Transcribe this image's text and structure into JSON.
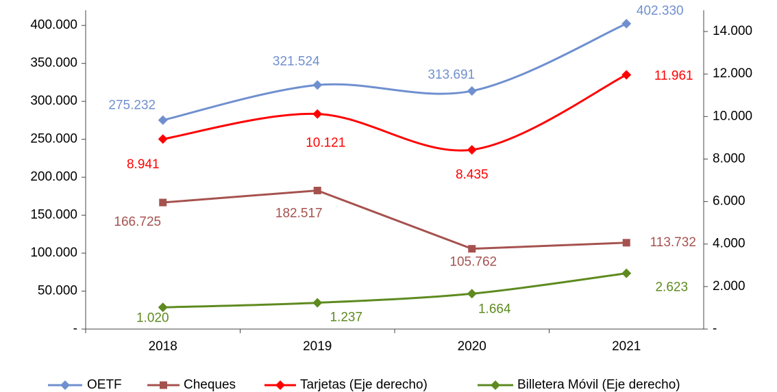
{
  "chart_data": {
    "type": "line",
    "categories": [
      "2018",
      "2019",
      "2020",
      "2021"
    ],
    "ylim": [
      0,
      420000
    ],
    "yticks": [
      {
        "value": 0,
        "label": "-"
      },
      {
        "value": 50000,
        "label": "50.000"
      },
      {
        "value": 100000,
        "label": "100.000"
      },
      {
        "value": 150000,
        "label": "150.000"
      },
      {
        "value": 200000,
        "label": "200.000"
      },
      {
        "value": 250000,
        "label": "250.000"
      },
      {
        "value": 300000,
        "label": "300.000"
      },
      {
        "value": 350000,
        "label": "350.000"
      },
      {
        "value": 400000,
        "label": "400.000"
      }
    ],
    "y2lim": [
      0,
      15000
    ],
    "y2ticks": [
      {
        "value": 0,
        "label": "-"
      },
      {
        "value": 2000,
        "label": "2.000"
      },
      {
        "value": 4000,
        "label": "4.000"
      },
      {
        "value": 6000,
        "label": "6.000"
      },
      {
        "value": 8000,
        "label": "8.000"
      },
      {
        "value": 10000,
        "label": "10.000"
      },
      {
        "value": 12000,
        "label": "12.000"
      },
      {
        "value": 14000,
        "label": "14.000"
      }
    ],
    "legend": "bottom",
    "series": [
      {
        "name": "OETF",
        "color": "#6f8fcf",
        "marker": "diamond",
        "smooth": true,
        "values": [
          275232,
          321524,
          313691,
          402330
        ],
        "value_labels": [
          "275.232",
          "321.524",
          "313.691",
          "402.330"
        ]
      },
      {
        "name": "Cheques",
        "color": "#a5524f",
        "marker": "square",
        "smooth": false,
        "values": [
          166725,
          182517,
          105762,
          113732
        ],
        "value_labels": [
          "166.725",
          "182.517",
          "105.762",
          "113.732"
        ]
      },
      {
        "name": "Tarjetas (Eje derecho)",
        "color": "#ff0000",
        "marker": "diamond",
        "smooth": true,
        "axis": "y2",
        "values": [
          8941,
          10121,
          8435,
          11961
        ],
        "value_labels": [
          "8.941",
          "10.121",
          "8.435",
          "11.961"
        ]
      },
      {
        "name": "Billetera Móvil (Eje derecho)",
        "color": "#5e8a1f",
        "marker": "diamond",
        "smooth": true,
        "axis": "y2",
        "values": [
          1020,
          1237,
          1664,
          2623
        ],
        "value_labels": [
          "1.020",
          "1.237",
          "1.664",
          "2.623"
        ]
      }
    ]
  }
}
